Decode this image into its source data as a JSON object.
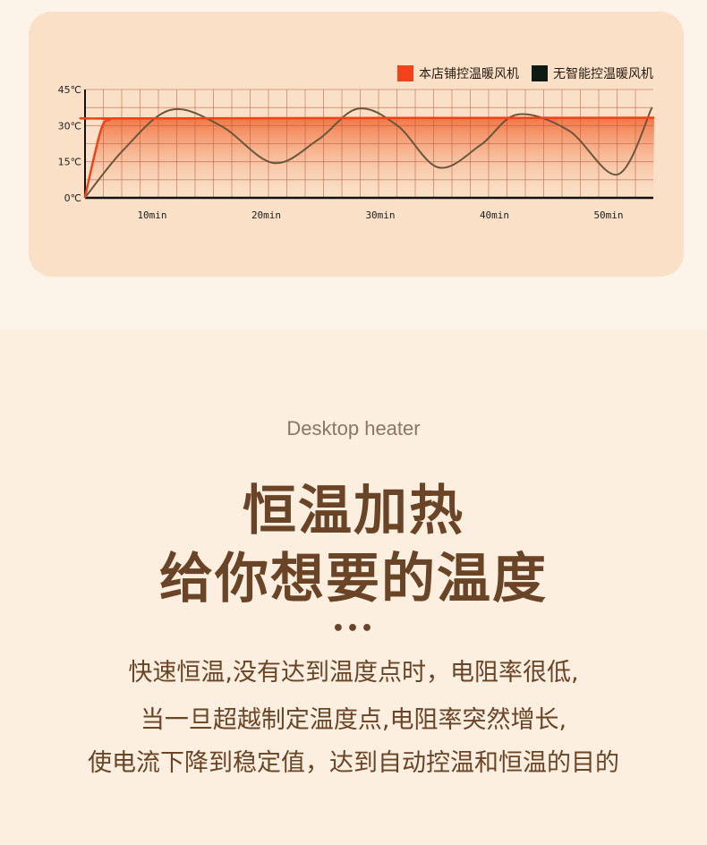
{
  "chart_data": {
    "type": "line",
    "title": "",
    "xlabel": "",
    "ylabel": "",
    "xlim": [
      4,
      54
    ],
    "ylim": [
      0,
      45
    ],
    "grid": true,
    "legend_position": "top-right",
    "x_tick_labels": [
      "10min",
      "20min",
      "30min",
      "40min",
      "50min"
    ],
    "x_ticks": [
      10,
      20,
      30,
      40,
      50
    ],
    "y_tick_labels": [
      "0℃",
      "15℃",
      "30℃",
      "45℃"
    ],
    "y_ticks": [
      0,
      15,
      30,
      45
    ],
    "series": [
      {
        "name": "本店铺控温暖风机",
        "color": "#f0421b",
        "filled": true,
        "points": [
          [
            4.1,
            0
          ],
          [
            5.5,
            28
          ],
          [
            6.3,
            32.5
          ],
          [
            7.5,
            33
          ],
          [
            54,
            33.3
          ]
        ]
      },
      {
        "name": "无智能控温暖风机",
        "color": "#0f1a10",
        "points": [
          [
            4.1,
            0
          ],
          [
            7.5,
            20
          ],
          [
            11.6,
            36.5
          ],
          [
            16,
            30
          ],
          [
            20.6,
            14.5
          ],
          [
            24.5,
            24
          ],
          [
            28,
            37
          ],
          [
            31.5,
            30
          ],
          [
            35.1,
            12.6
          ],
          [
            38.8,
            22
          ],
          [
            42,
            34.6
          ],
          [
            46.5,
            28
          ],
          [
            50.8,
            9.7
          ],
          [
            53.8,
            37.5
          ]
        ]
      }
    ]
  },
  "subtitle": "Desktop heater",
  "headline": [
    "恒温加热",
    "给你想要的温度"
  ],
  "dots": "•••",
  "body_lines": [
    "快速恒温,没有达到温度点时，电阻率很低,",
    "当一旦超越制定温度点,电阻率突然增长,",
    "使电流下降到稳定值，达到自动控温和恒温的目的"
  ]
}
